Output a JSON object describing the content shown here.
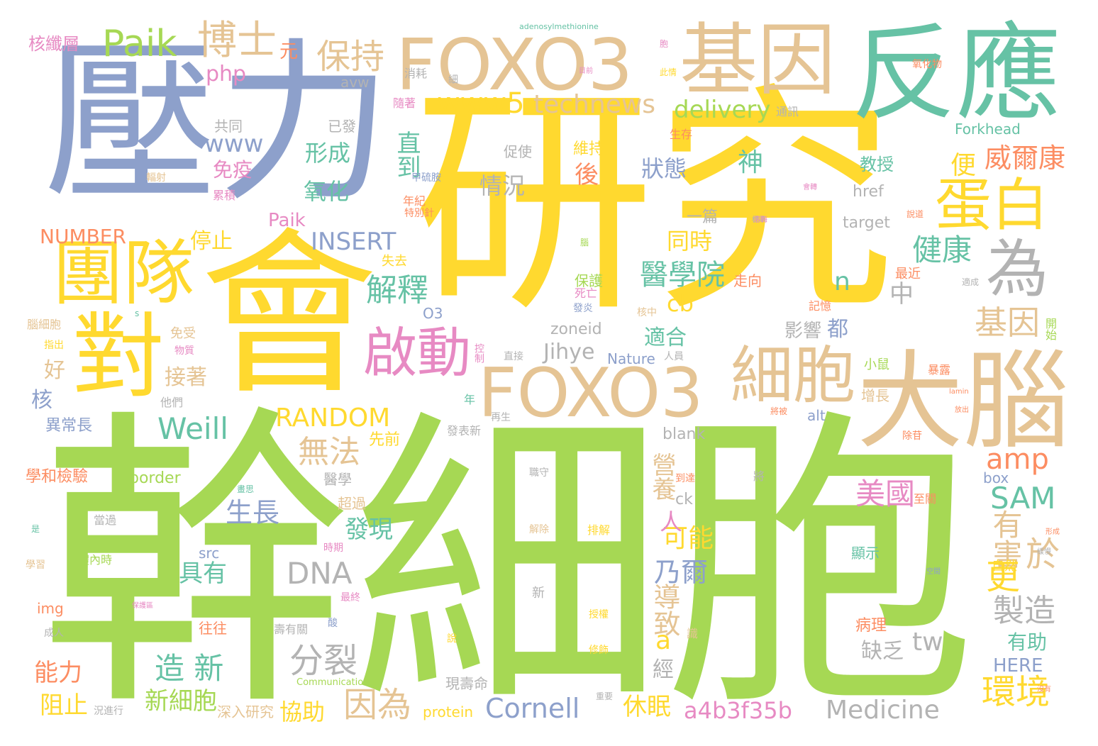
{
  "colors": {
    "green": "#a6d854",
    "yellow": "#ffd92f",
    "tan": "#e5c494",
    "blue": "#8da0cb",
    "teal": "#66c2a5",
    "pink": "#e78ac3",
    "orange": "#fc8d62",
    "gray": "#b3b3b3"
  },
  "words": [
    {
      "text": "研究",
      "color": "yellow"
    },
    {
      "text": "幹細胞",
      "color": "green"
    },
    {
      "text": "壓力",
      "color": "blue"
    },
    {
      "text": "會",
      "color": "yellow"
    },
    {
      "text": "反應",
      "color": "teal"
    },
    {
      "text": "FOXO3",
      "color": "tan"
    },
    {
      "text": "基因",
      "color": "tan"
    },
    {
      "text": "FOXO3",
      "color": "tan"
    },
    {
      "text": "大腦",
      "color": "tan"
    },
    {
      "text": "對",
      "color": "yellow"
    },
    {
      "text": "團隊",
      "color": "yellow"
    },
    {
      "text": "細胞",
      "color": "tan"
    },
    {
      "text": "啟動",
      "color": "pink"
    },
    {
      "text": "蛋白",
      "color": "yellow"
    },
    {
      "text": "為",
      "color": "gray"
    },
    {
      "text": "Paik",
      "color": "green"
    },
    {
      "text": "博士",
      "color": "tan"
    },
    {
      "text": "保持",
      "color": "tan"
    },
    {
      "text": "www5",
      "color": "yellow"
    },
    {
      "text": "technews",
      "color": "tan"
    },
    {
      "text": "delivery",
      "color": "green"
    },
    {
      "text": "Weill",
      "color": "teal"
    },
    {
      "text": "RANDOM",
      "color": "yellow"
    },
    {
      "text": "DNA",
      "color": "gray"
    },
    {
      "text": "amp",
      "color": "orange"
    },
    {
      "text": "SAM",
      "color": "teal"
    },
    {
      "text": "Cornell",
      "color": "blue"
    },
    {
      "text": "Medicine",
      "color": "gray"
    },
    {
      "text": "a4b3f35b",
      "color": "pink"
    },
    {
      "text": "因為",
      "color": "tan"
    },
    {
      "text": "分裂",
      "color": "gray"
    },
    {
      "text": "無法",
      "color": "tan"
    },
    {
      "text": "解釋",
      "color": "teal"
    },
    {
      "text": "健康",
      "color": "teal"
    },
    {
      "text": "基因",
      "color": "tan"
    },
    {
      "text": "威爾康",
      "color": "orange"
    },
    {
      "text": "醫學院",
      "color": "teal"
    },
    {
      "text": "INSERT",
      "color": "blue"
    },
    {
      "text": "NUMBER",
      "color": "orange"
    },
    {
      "text": "www",
      "color": "blue"
    },
    {
      "text": "php",
      "color": "pink"
    },
    {
      "text": "Paik",
      "color": "pink"
    },
    {
      "text": "Jihye",
      "color": "gray"
    },
    {
      "text": "美國",
      "color": "pink"
    },
    {
      "text": "製造",
      "color": "gray"
    },
    {
      "text": "環境",
      "color": "yellow"
    },
    {
      "text": "有害",
      "color": "tan"
    },
    {
      "text": "更",
      "color": "yellow"
    },
    {
      "text": "於",
      "color": "tan"
    },
    {
      "text": "造 新",
      "color": "teal"
    },
    {
      "text": "生長",
      "color": "blue"
    },
    {
      "text": "發現",
      "color": "teal"
    },
    {
      "text": "乃爾",
      "color": "blue"
    },
    {
      "text": "可能",
      "color": "yellow"
    },
    {
      "text": "導致",
      "color": "tan"
    },
    {
      "text": "營養",
      "color": "tan"
    },
    {
      "text": "具有",
      "color": "teal"
    },
    {
      "text": "新細胞",
      "color": "green"
    },
    {
      "text": "協助",
      "color": "yellow"
    },
    {
      "text": "休眠",
      "color": "yellow"
    },
    {
      "text": "能力",
      "color": "orange"
    },
    {
      "text": "阻止",
      "color": "yellow"
    },
    {
      "text": "形成",
      "color": "teal"
    },
    {
      "text": "氧化",
      "color": "teal"
    },
    {
      "text": "直到",
      "color": "teal"
    },
    {
      "text": "狀態",
      "color": "blue"
    },
    {
      "text": "情況",
      "color": "gray"
    },
    {
      "text": "同時",
      "color": "yellow"
    },
    {
      "text": "停止",
      "color": "yellow"
    },
    {
      "text": "免疫",
      "color": "pink"
    },
    {
      "text": "神",
      "color": "teal"
    },
    {
      "text": "後",
      "color": "orange"
    },
    {
      "text": "便",
      "color": "yellow"
    },
    {
      "text": "核纖層",
      "color": "pink"
    },
    {
      "text": "元",
      "color": "orange"
    },
    {
      "text": "cb",
      "color": "yellow"
    },
    {
      "text": "n",
      "color": "teal"
    },
    {
      "text": "中",
      "color": "gray"
    },
    {
      "text": "適合",
      "color": "teal"
    },
    {
      "text": "影響",
      "color": "gray"
    },
    {
      "text": "都",
      "color": "blue"
    },
    {
      "text": "接著",
      "color": "tan"
    },
    {
      "text": "好",
      "color": "tan"
    },
    {
      "text": "核",
      "color": "blue"
    },
    {
      "text": "a",
      "color": "yellow"
    },
    {
      "text": "缺乏",
      "color": "gray"
    },
    {
      "text": "tw",
      "color": "gray"
    },
    {
      "text": "有助",
      "color": "teal"
    },
    {
      "text": "HERE",
      "color": "blue"
    },
    {
      "text": "病理",
      "color": "orange"
    },
    {
      "text": "經",
      "color": "gray"
    },
    {
      "text": "人",
      "color": "pink"
    },
    {
      "text": "Forkhead",
      "color": "teal"
    },
    {
      "text": "教授",
      "color": "teal"
    },
    {
      "text": "href",
      "color": "gray"
    },
    {
      "text": "target",
      "color": "gray"
    },
    {
      "text": "一篇",
      "color": "gray"
    },
    {
      "text": "維持",
      "color": "yellow"
    },
    {
      "text": "zoneid",
      "color": "gray"
    },
    {
      "text": "Nature",
      "color": "blue"
    },
    {
      "text": "blank",
      "color": "gray"
    },
    {
      "text": "ck",
      "color": "gray"
    },
    {
      "text": "src",
      "color": "blue"
    },
    {
      "text": "border",
      "color": "green"
    },
    {
      "text": "box",
      "color": "blue"
    },
    {
      "text": "alt",
      "color": "blue"
    },
    {
      "text": "img",
      "color": "orange"
    },
    {
      "text": "protein",
      "color": "yellow"
    },
    {
      "text": "O3",
      "color": "blue"
    },
    {
      "text": "avw",
      "color": "gray"
    },
    {
      "text": "共同",
      "color": "gray"
    },
    {
      "text": "已發",
      "color": "gray"
    },
    {
      "text": "促使",
      "color": "gray"
    },
    {
      "text": "異常長",
      "color": "blue"
    },
    {
      "text": "先前",
      "color": "yellow"
    },
    {
      "text": "學和檢驗",
      "color": "orange"
    },
    {
      "text": "醫學",
      "color": "gray"
    },
    {
      "text": "超過",
      "color": "tan"
    },
    {
      "text": "往往",
      "color": "orange"
    },
    {
      "text": "深入研究",
      "color": "tan"
    },
    {
      "text": "現壽命",
      "color": "gray"
    },
    {
      "text": "增長",
      "color": "tan"
    },
    {
      "text": "顯示",
      "color": "teal"
    },
    {
      "text": "最近",
      "color": "orange"
    },
    {
      "text": "保護",
      "color": "green"
    },
    {
      "text": "走向",
      "color": "orange"
    },
    {
      "text": "失去",
      "color": "yellow"
    },
    {
      "text": "免受",
      "color": "tan"
    },
    {
      "text": "adenosylmethionine",
      "color": "teal"
    },
    {
      "text": "Communications",
      "color": "green"
    },
    {
      "text": "小鼠",
      "color": "green"
    },
    {
      "text": "通訊",
      "color": "gray"
    },
    {
      "text": "生存",
      "color": "orange"
    },
    {
      "text": "累積",
      "color": "pink"
    },
    {
      "text": "年紀",
      "color": "orange"
    },
    {
      "text": "死亡",
      "color": "pink"
    },
    {
      "text": "記憶",
      "color": "orange"
    },
    {
      "text": "暴露",
      "color": "orange"
    },
    {
      "text": "自然",
      "color": "yellow"
    },
    {
      "text": "至關",
      "color": "orange"
    },
    {
      "text": "開始",
      "color": "green"
    },
    {
      "text": "隨著",
      "color": "pink"
    },
    {
      "text": "消耗",
      "color": "gray"
    },
    {
      "text": "甲硫胺",
      "color": "blue"
    },
    {
      "text": "特別針",
      "color": "orange"
    },
    {
      "text": "控制",
      "color": "pink"
    },
    {
      "text": "直接",
      "color": "gray"
    },
    {
      "text": "人員",
      "color": "gray"
    },
    {
      "text": "他們",
      "color": "gray"
    },
    {
      "text": "發表新",
      "color": "gray"
    },
    {
      "text": "再生",
      "color": "gray"
    },
    {
      "text": "年",
      "color": "teal"
    },
    {
      "text": "排解",
      "color": "yellow"
    },
    {
      "text": "解除",
      "color": "tan"
    },
    {
      "text": "職守",
      "color": "gray"
    },
    {
      "text": "體內時",
      "color": "green"
    },
    {
      "text": "當過",
      "color": "gray"
    },
    {
      "text": "時期",
      "color": "pink"
    },
    {
      "text": "最終",
      "color": "pink"
    },
    {
      "text": "壽有關",
      "color": "gray"
    },
    {
      "text": "成人",
      "color": "gray"
    },
    {
      "text": "況進行",
      "color": "gray"
    },
    {
      "text": "新",
      "color": "gray"
    },
    {
      "text": "重要",
      "color": "gray"
    },
    {
      "text": "修飾",
      "color": "yellow"
    },
    {
      "text": "授權",
      "color": "yellow"
    },
    {
      "text": "識",
      "color": "tan"
    },
    {
      "text": "腦細胞",
      "color": "tan"
    },
    {
      "text": "指出",
      "color": "yellow"
    },
    {
      "text": "物質",
      "color": "pink"
    },
    {
      "text": "學習",
      "color": "tan"
    },
    {
      "text": "輻射",
      "color": "tan"
    },
    {
      "text": "發炎",
      "color": "blue"
    },
    {
      "text": "核中",
      "color": "tan"
    },
    {
      "text": "氧化物",
      "color": "orange"
    },
    {
      "text": "說道",
      "color": "orange"
    },
    {
      "text": "適成",
      "color": "gray"
    },
    {
      "text": "標準",
      "color": "gray"
    },
    {
      "text": "緩慢",
      "color": "gray"
    },
    {
      "text": "將被",
      "color": "orange"
    },
    {
      "text": "lamin",
      "color": "orange"
    },
    {
      "text": "將",
      "color": "gray"
    },
    {
      "text": "是",
      "color": "teal"
    },
    {
      "text": "s",
      "color": "teal"
    },
    {
      "text": "細",
      "color": "gray"
    },
    {
      "text": "胞",
      "color": "pink"
    },
    {
      "text": "此情",
      "color": "yellow"
    },
    {
      "text": "腦",
      "color": "green"
    },
    {
      "text": "酸",
      "color": "blue"
    },
    {
      "text": "說",
      "color": "yellow"
    },
    {
      "text": "除苷",
      "color": "orange"
    },
    {
      "text": "到達",
      "color": "orange"
    },
    {
      "text": "目前",
      "color": "pink"
    },
    {
      "text": "沒有",
      "color": "orange"
    },
    {
      "text": "保護區",
      "color": "pink"
    },
    {
      "text": "溶酶",
      "color": "pink"
    },
    {
      "text": "會轉",
      "color": "pink"
    },
    {
      "text": "畫思",
      "color": "teal"
    },
    {
      "text": "放出",
      "color": "orange"
    },
    {
      "text": "形成",
      "color": "orange"
    },
    {
      "text": "空間",
      "color": "blue"
    }
  ]
}
